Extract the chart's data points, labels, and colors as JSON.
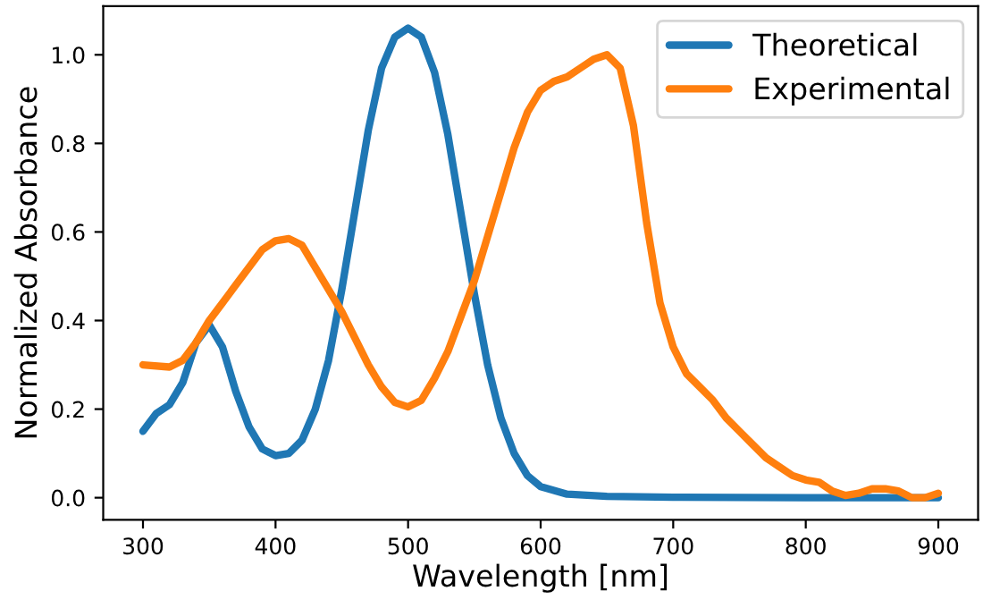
{
  "chart_data": {
    "type": "line",
    "xlabel": "Wavelength [nm]",
    "ylabel": "Normalized Absorbance",
    "xlim": [
      270,
      930
    ],
    "ylim": [
      -0.05,
      1.11
    ],
    "xticks": [
      300,
      400,
      500,
      600,
      700,
      800,
      900
    ],
    "yticks": [
      {
        "value": 0,
        "label": "0.0"
      },
      {
        "value": 0.2,
        "label": "0.2"
      },
      {
        "value": 0.4,
        "label": "0.4"
      },
      {
        "value": 0.6,
        "label": "0.6"
      },
      {
        "value": 0.8,
        "label": "0.8"
      },
      {
        "value": 1.0,
        "label": "1.0"
      }
    ],
    "grid": false,
    "legend": "top right",
    "marker": "none",
    "line_style": "solid",
    "series": [
      {
        "name": "Theoretical",
        "color": "#1f77b4",
        "x": [
          300,
          310,
          320,
          330,
          340,
          350,
          360,
          370,
          380,
          390,
          400,
          410,
          420,
          430,
          440,
          450,
          460,
          470,
          480,
          490,
          500,
          510,
          520,
          530,
          540,
          550,
          560,
          570,
          580,
          590,
          600,
          620,
          650,
          700,
          800,
          900
        ],
        "values": [
          0.15,
          0.19,
          0.21,
          0.26,
          0.35,
          0.39,
          0.34,
          0.24,
          0.16,
          0.11,
          0.095,
          0.1,
          0.13,
          0.2,
          0.31,
          0.47,
          0.65,
          0.83,
          0.97,
          1.04,
          1.06,
          1.04,
          0.96,
          0.82,
          0.64,
          0.46,
          0.3,
          0.18,
          0.1,
          0.05,
          0.025,
          0.008,
          0.003,
          0.001,
          0,
          0
        ]
      },
      {
        "name": "Experimental",
        "color": "#ff7f0e",
        "x": [
          300,
          320,
          330,
          340,
          350,
          360,
          370,
          380,
          390,
          400,
          410,
          420,
          430,
          440,
          450,
          460,
          470,
          480,
          490,
          500,
          510,
          520,
          530,
          540,
          550,
          560,
          570,
          580,
          590,
          600,
          610,
          620,
          630,
          640,
          650,
          660,
          670,
          680,
          690,
          700,
          710,
          720,
          730,
          740,
          750,
          760,
          770,
          780,
          790,
          800,
          810,
          820,
          830,
          840,
          850,
          860,
          870,
          880,
          890,
          900
        ],
        "values": [
          0.3,
          0.295,
          0.31,
          0.35,
          0.4,
          0.44,
          0.48,
          0.52,
          0.56,
          0.58,
          0.585,
          0.57,
          0.52,
          0.47,
          0.42,
          0.36,
          0.3,
          0.25,
          0.215,
          0.205,
          0.22,
          0.27,
          0.33,
          0.41,
          0.49,
          0.59,
          0.69,
          0.79,
          0.87,
          0.92,
          0.94,
          0.95,
          0.97,
          0.99,
          1.0,
          0.97,
          0.84,
          0.62,
          0.44,
          0.34,
          0.28,
          0.25,
          0.22,
          0.18,
          0.15,
          0.12,
          0.09,
          0.07,
          0.05,
          0.04,
          0.035,
          0.015,
          0.005,
          0.01,
          0.02,
          0.02,
          0.015,
          0.0,
          0.0,
          0.01
        ]
      }
    ]
  }
}
